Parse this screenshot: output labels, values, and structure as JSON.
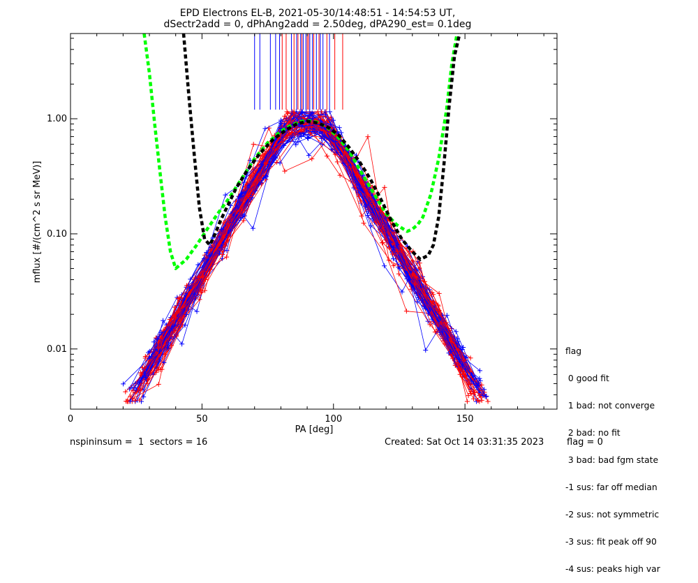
{
  "header": {
    "title_line1": "EPD Electrons EL-B, 2021-05-30/14:48:51 - 14:54:53 UT,",
    "title_line2": "dSectr2add = 0, dPhAng2add = 2.50deg, dPA290_est=   0.1deg"
  },
  "chart_data": {
    "type": "scatter",
    "xlabel": "PA [deg]",
    "ylabel": "mflux [#/(cm^2 s sr MeV)]",
    "xlim": [
      0,
      185
    ],
    "ylim": [
      0.003,
      5.5
    ],
    "y_scale": "log",
    "x_ticks": [
      0,
      50,
      100,
      150
    ],
    "x_tick_labels": [
      "0",
      "50",
      "100",
      "150"
    ],
    "y_ticks": [
      0.01,
      0.1,
      1.0
    ],
    "y_tick_labels": [
      "0.01",
      "0.10",
      "1.00"
    ],
    "grid": false,
    "colors": {
      "blue": "#0000ff",
      "red": "#ff0000",
      "green": "#00ff00",
      "black": "#000000"
    },
    "series": [
      {
        "color": "green",
        "style": "dashed",
        "x": [
          28,
          30,
          32,
          34,
          36,
          38,
          40,
          44,
          48,
          52,
          56,
          60,
          65,
          70,
          75,
          80,
          84,
          88,
          91,
          94,
          98,
          102,
          106,
          110,
          115,
          120,
          124,
          128,
          130,
          132,
          134,
          137,
          140,
          143,
          145,
          147
        ],
        "y": [
          5.5,
          2.5,
          0.9,
          0.35,
          0.14,
          0.07,
          0.05,
          0.06,
          0.08,
          0.11,
          0.15,
          0.2,
          0.3,
          0.45,
          0.62,
          0.78,
          0.88,
          0.95,
          0.96,
          0.93,
          0.83,
          0.68,
          0.52,
          0.36,
          0.23,
          0.15,
          0.12,
          0.105,
          0.11,
          0.12,
          0.14,
          0.22,
          0.45,
          1.2,
          3.0,
          5.5
        ]
      },
      {
        "color": "black",
        "style": "dashed",
        "x": [
          43,
          45,
          47,
          49,
          51,
          53,
          55,
          57,
          60,
          63,
          67,
          72,
          77,
          82,
          86,
          90,
          94,
          98,
          102,
          106,
          110,
          114,
          118,
          122,
          126,
          130,
          133,
          136,
          138,
          140,
          142,
          144,
          146,
          148
        ],
        "y": [
          5.5,
          1.6,
          0.5,
          0.17,
          0.09,
          0.08,
          0.1,
          0.13,
          0.18,
          0.25,
          0.35,
          0.5,
          0.66,
          0.8,
          0.9,
          0.95,
          0.92,
          0.84,
          0.72,
          0.56,
          0.42,
          0.3,
          0.2,
          0.13,
          0.09,
          0.07,
          0.06,
          0.065,
          0.08,
          0.14,
          0.4,
          1.3,
          3.5,
          5.5
        ]
      }
    ],
    "vertical_markers": {
      "y_from": 1.2,
      "y_to": 5.5,
      "blue": [
        70,
        72,
        76,
        78,
        79.5,
        84,
        86,
        87.5,
        88.5,
        89.5,
        91,
        92,
        93.5,
        95,
        96,
        98.5
      ],
      "red": [
        80.5,
        82,
        85,
        86.5,
        88,
        90,
        90.5,
        92.5,
        94.5,
        97.5,
        100.5,
        103.5
      ]
    }
  },
  "legend": {
    "title": "flag",
    "items": [
      " 0 good fit",
      " 1 bad: not converge",
      " 2 bad: no fit",
      " 3 bad: bad fgm state",
      "-1 sus: far off median",
      "-2 sus: not symmetric",
      "-3 sus: fit peak off 90",
      "-4 sus: peaks high var"
    ]
  },
  "footer": {
    "left": "nspininsum =  1  sectors = 16",
    "created": "Created: Sat Oct 14 03:31:35 2023",
    "flag": "flag = 0"
  }
}
